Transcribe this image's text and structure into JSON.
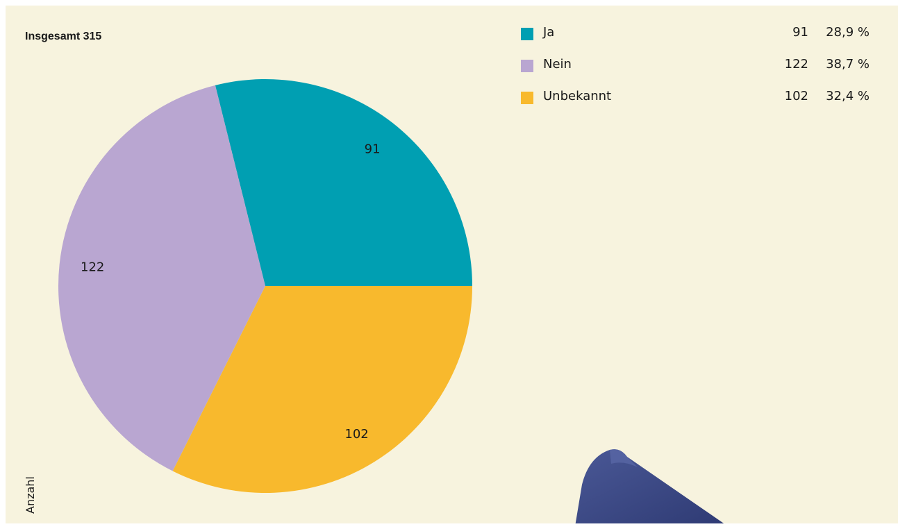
{
  "header": {
    "total_label": "Insgesamt 315"
  },
  "axis": {
    "count_label": "Anzahl"
  },
  "colors": {
    "background": "#f7f3de",
    "ja": "#009fb2",
    "nein": "#b9a6d1",
    "unbekannt": "#f8b92d"
  },
  "chart_data": {
    "type": "pie",
    "total": 315,
    "categories": [
      "Ja",
      "Nein",
      "Unbekannt"
    ],
    "values": [
      91,
      122,
      102
    ],
    "percentages": [
      "28,9 %",
      "38,7 %",
      "32,4 %"
    ],
    "colors": [
      "#009fb2",
      "#b9a6d1",
      "#f8b92d"
    ]
  },
  "legend": [
    {
      "label": "Ja",
      "count": "91",
      "pct": "28,9 %"
    },
    {
      "label": "Nein",
      "count": "122",
      "pct": "38,7 %"
    },
    {
      "label": "Unbekannt",
      "count": "102",
      "pct": "32,4 %"
    }
  ],
  "slice_labels": [
    "91",
    "122",
    "102"
  ]
}
